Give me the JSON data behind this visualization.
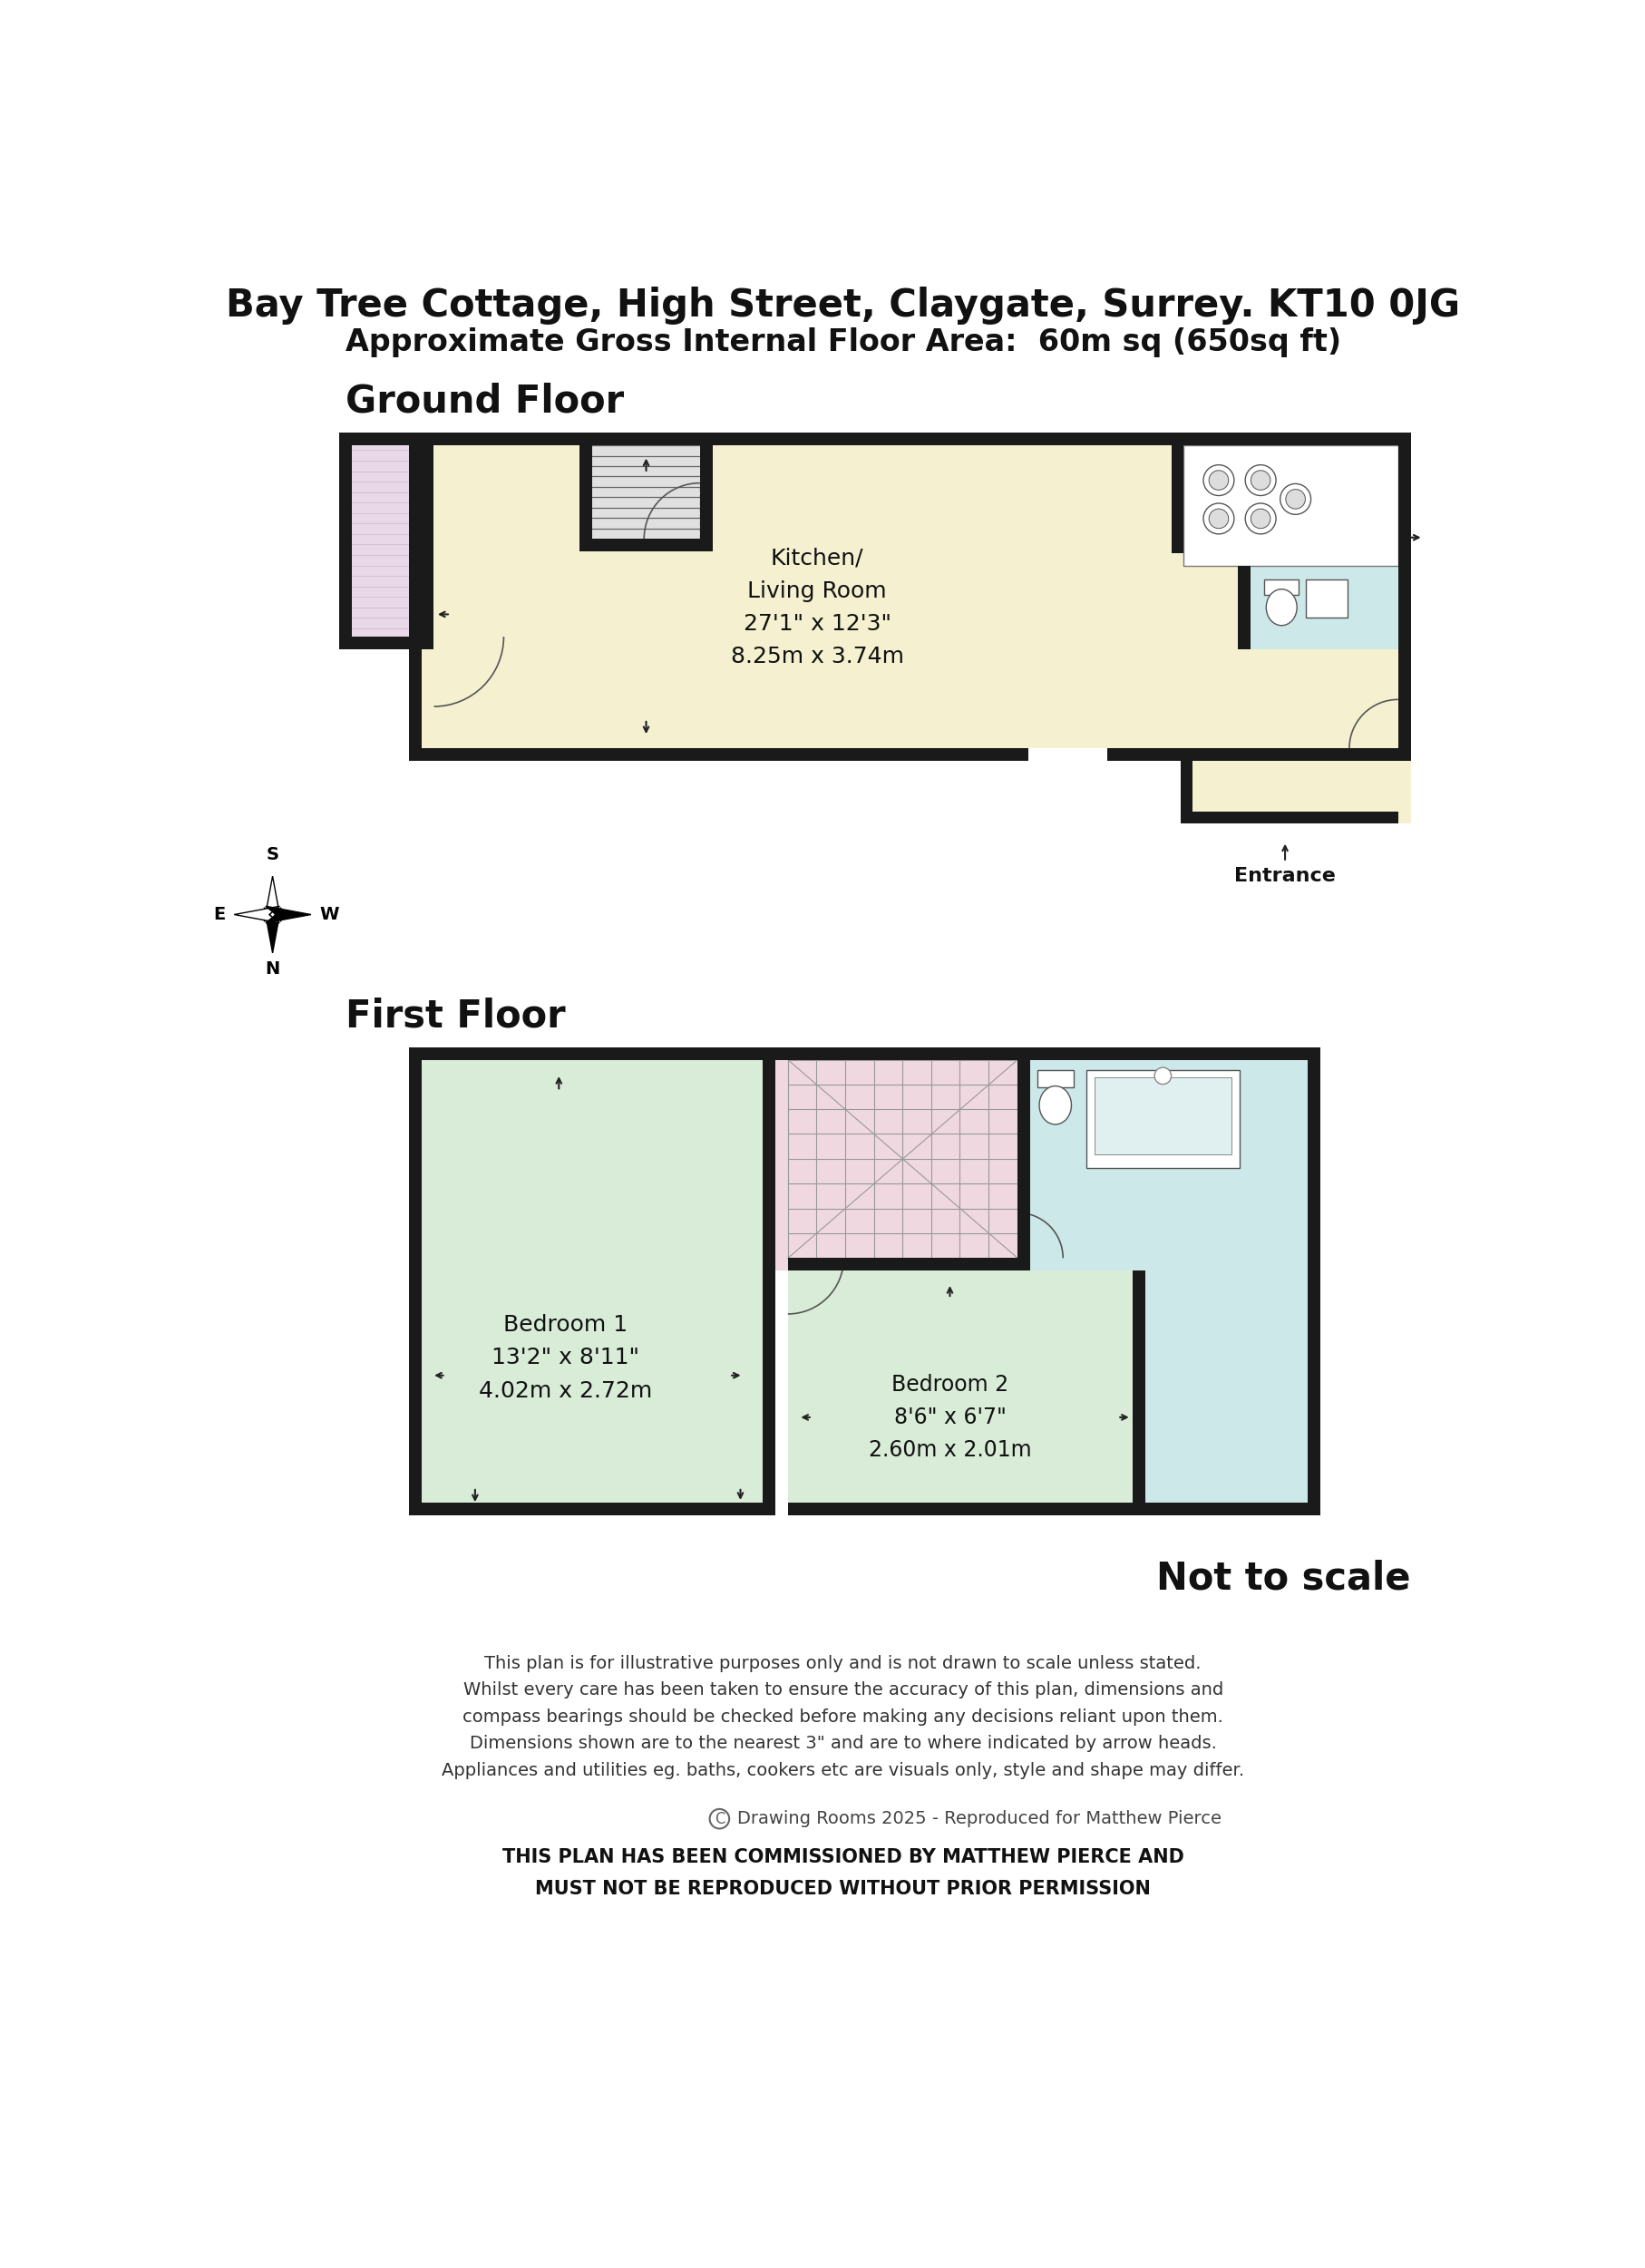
{
  "title": "Bay Tree Cottage, High Street, Claygate, Surrey. KT10 0JG",
  "subtitle": "Approximate Gross Internal Floor Area:  60m sq (650sq ft)",
  "ground_floor_label": "Ground Floor",
  "first_floor_label": "First Floor",
  "not_to_scale": "Not to scale",
  "copyright": "Drawing Rooms 2025 - Reproduced for Matthew Pierce",
  "legal1": "THIS PLAN HAS BEEN COMMISSIONED BY MATTHEW PIERCE AND",
  "legal2": "MUST NOT BE REPRODUCED WITHOUT PRIOR PERMISSION",
  "disclaimer": "This plan is for illustrative purposes only and is not drawn to scale unless stated.\nWhilst every care has been taken to ensure the accuracy of this plan, dimensions and\ncompass bearings should be checked before making any decisions reliant upon them.\nDimensions shown are to the nearest 3\" and are to where indicated by arrow heads.\nAppliances and utilities eg. baths, cookers etc are visuals only, style and shape may differ.",
  "bg_color": "#ffffff",
  "wall_color": "#1a1a1a",
  "floor_cream": "#f5f0d0",
  "floor_green": "#d8ecd8",
  "floor_lavender": "#e8d8e8",
  "floor_blue": "#cce8e8",
  "floor_pink": "#f0d8e0",
  "stair_gray": "#e0e0e0"
}
